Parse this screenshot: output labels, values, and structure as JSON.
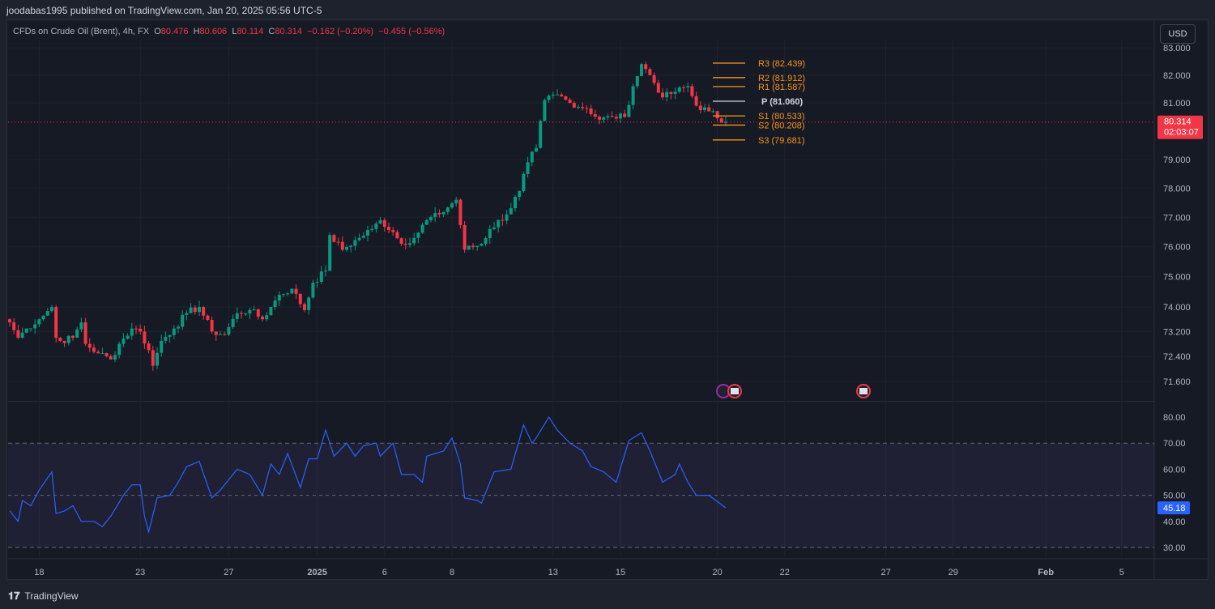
{
  "header": {
    "published": "joodabas1995 published on TradingView.com, Jan 20, 2025 05:56 UTC-5"
  },
  "legend": {
    "symbol": "CFDs on Crude Oil (Brent), 4h, FX",
    "o_label": "O",
    "o": "80.476",
    "h_label": "H",
    "h": "80.606",
    "l_label": "L",
    "l": "80.114",
    "c_label": "C",
    "c": "80.314",
    "change": "−0.162 (−0.20%)",
    "change2": "−0.455 (−0.56%)"
  },
  "currency": "USD",
  "last_price": {
    "value": "80.314",
    "countdown": "02:03:07"
  },
  "rsi_last": "45.18",
  "footer": {
    "brand": "TradingView"
  },
  "colors": {
    "up": "#089981",
    "down": "#f23645",
    "pivot": "#f7931a",
    "p": "#d1d4dc",
    "rsi": "#2962ff",
    "bg": "#161a25"
  },
  "chart_data": [
    {
      "type": "candlestick",
      "title": "CFDs on Crude Oil (Brent), 4h",
      "yticks": [
        "83.000",
        "82.000",
        "81.000",
        "79.000",
        "78.000",
        "77.000",
        "76.000",
        "75.000",
        "74.000",
        "73.200",
        "72.400",
        "71.600"
      ],
      "ylim": [
        71.3,
        83.2
      ],
      "xticks": [
        {
          "label": "18",
          "bar": 7
        },
        {
          "label": "23",
          "bar": 31
        },
        {
          "label": "27",
          "bar": 52
        },
        {
          "label": "2025",
          "bar": 73
        },
        {
          "label": "6",
          "bar": 89
        },
        {
          "label": "8",
          "bar": 105
        },
        {
          "label": "13",
          "bar": 129
        },
        {
          "label": "15",
          "bar": 145
        },
        {
          "label": "20",
          "bar": 168
        },
        {
          "label": "22",
          "bar": 184
        },
        {
          "label": "27",
          "bar": 208
        },
        {
          "label": "29",
          "bar": 224
        },
        {
          "label": "Feb",
          "bar": 246
        },
        {
          "label": "5",
          "bar": 264
        }
      ],
      "close_anchors": [
        [
          0,
          73.5
        ],
        [
          2,
          73.0
        ],
        [
          4,
          73.3
        ],
        [
          7,
          73.6
        ],
        [
          10,
          74.0
        ],
        [
          11,
          73.0
        ],
        [
          12,
          72.9
        ],
        [
          15,
          73.0
        ],
        [
          17,
          73.5
        ],
        [
          18,
          72.8
        ],
        [
          21,
          72.5
        ],
        [
          24,
          72.3
        ],
        [
          26,
          72.8
        ],
        [
          29,
          73.3
        ],
        [
          31,
          73.2
        ],
        [
          33,
          72.6
        ],
        [
          34,
          72.1
        ],
        [
          36,
          72.9
        ],
        [
          39,
          73.3
        ],
        [
          42,
          73.8
        ],
        [
          45,
          74.0
        ],
        [
          48,
          73.2
        ],
        [
          51,
          73.1
        ],
        [
          54,
          73.8
        ],
        [
          57,
          73.9
        ],
        [
          60,
          73.6
        ],
        [
          62,
          74.0
        ],
        [
          64,
          74.4
        ],
        [
          67,
          74.6
        ],
        [
          70,
          73.9
        ],
        [
          72,
          74.8
        ],
        [
          75,
          75.2
        ],
        [
          76,
          76.4
        ],
        [
          79,
          75.9
        ],
        [
          83,
          76.3
        ],
        [
          86,
          76.6
        ],
        [
          88,
          76.9
        ],
        [
          91,
          76.5
        ],
        [
          93,
          76.1
        ],
        [
          96,
          76.3
        ],
        [
          99,
          76.9
        ],
        [
          102,
          77.1
        ],
        [
          106,
          77.6
        ],
        [
          108,
          75.9
        ],
        [
          112,
          76.1
        ],
        [
          114,
          76.6
        ],
        [
          118,
          77.1
        ],
        [
          121,
          77.9
        ],
        [
          123,
          78.9
        ],
        [
          125,
          79.4
        ],
        [
          127,
          81.1
        ],
        [
          130,
          81.3
        ],
        [
          133,
          81.0
        ],
        [
          137,
          80.8
        ],
        [
          140,
          80.4
        ],
        [
          143,
          80.5
        ],
        [
          146,
          80.5
        ],
        [
          148,
          81.6
        ],
        [
          150,
          82.4
        ],
        [
          152,
          82.0
        ],
        [
          155,
          81.2
        ],
        [
          158,
          81.4
        ],
        [
          161,
          81.6
        ],
        [
          163,
          80.9
        ],
        [
          166,
          80.7
        ],
        [
          170,
          80.314
        ]
      ],
      "pivots": [
        {
          "label": "R3 (82.439)",
          "value": 82.439
        },
        {
          "label": "R2 (81.912)",
          "value": 81.912
        },
        {
          "label": "R1 (81.587)",
          "value": 81.587
        },
        {
          "label": "P (81.060)",
          "value": 81.06
        },
        {
          "label": "S1 (80.533)",
          "value": 80.533
        },
        {
          "label": "S2 (80.208)",
          "value": 80.208
        },
        {
          "label": "S3 (79.681)",
          "value": 79.681
        }
      ]
    },
    {
      "type": "line",
      "title": "RSI",
      "yticks": [
        "80.00",
        "70.00",
        "60.00",
        "50.00",
        "40.00",
        "30.00"
      ],
      "ylim": [
        25.5,
        82
      ],
      "bands": [
        30,
        50,
        70
      ],
      "anchors": [
        [
          0,
          44
        ],
        [
          2,
          40
        ],
        [
          3,
          48
        ],
        [
          5,
          46
        ],
        [
          7,
          52
        ],
        [
          10,
          59
        ],
        [
          11,
          43
        ],
        [
          13,
          44
        ],
        [
          15,
          46
        ],
        [
          17,
          40
        ],
        [
          20,
          40
        ],
        [
          22,
          38
        ],
        [
          24,
          42
        ],
        [
          27,
          50
        ],
        [
          29,
          54
        ],
        [
          31,
          54
        ],
        [
          32,
          42
        ],
        [
          33,
          36
        ],
        [
          35,
          49
        ],
        [
          38,
          50
        ],
        [
          40,
          55
        ],
        [
          42,
          61
        ],
        [
          45,
          63
        ],
        [
          48,
          49
        ],
        [
          50,
          52
        ],
        [
          54,
          60
        ],
        [
          57,
          58
        ],
        [
          60,
          50
        ],
        [
          62,
          62
        ],
        [
          64,
          58
        ],
        [
          66,
          66
        ],
        [
          69,
          53
        ],
        [
          71,
          64
        ],
        [
          73,
          64
        ],
        [
          75,
          75
        ],
        [
          77,
          65
        ],
        [
          80,
          70
        ],
        [
          82,
          65
        ],
        [
          84,
          69
        ],
        [
          87,
          70
        ],
        [
          88,
          65
        ],
        [
          91,
          70
        ],
        [
          93,
          58
        ],
        [
          96,
          58
        ],
        [
          98,
          55
        ],
        [
          99,
          65
        ],
        [
          103,
          67
        ],
        [
          105,
          72
        ],
        [
          107,
          62
        ],
        [
          108,
          49
        ],
        [
          111,
          48
        ],
        [
          112,
          47
        ],
        [
          115,
          59
        ],
        [
          119,
          60
        ],
        [
          122,
          77
        ],
        [
          124,
          70
        ],
        [
          125,
          72
        ],
        [
          128,
          80
        ],
        [
          130,
          75
        ],
        [
          133,
          70
        ],
        [
          136,
          67
        ],
        [
          138,
          61
        ],
        [
          141,
          59
        ],
        [
          144,
          55
        ],
        [
          147,
          71
        ],
        [
          150,
          74
        ],
        [
          152,
          67
        ],
        [
          155,
          55
        ],
        [
          158,
          58
        ],
        [
          159,
          62
        ],
        [
          161,
          55
        ],
        [
          163,
          50
        ],
        [
          166,
          50
        ],
        [
          170,
          45.18
        ]
      ]
    }
  ]
}
